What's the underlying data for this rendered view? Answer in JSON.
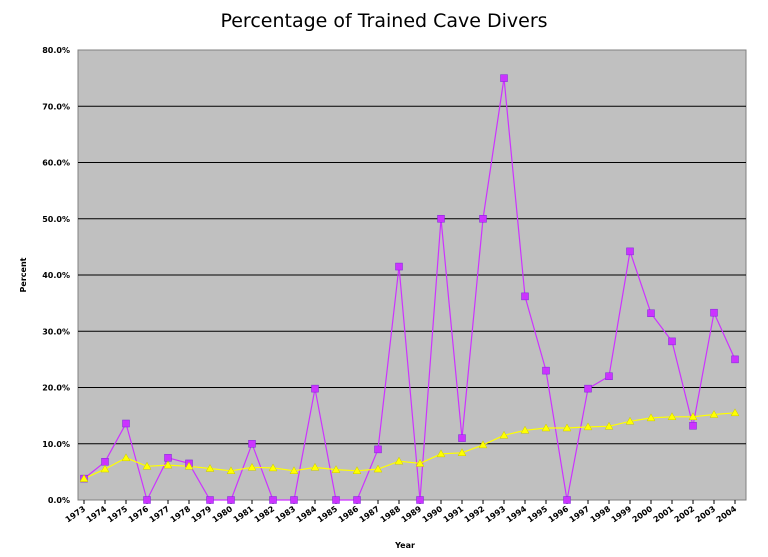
{
  "chart_data": {
    "type": "line",
    "title": "Percentage of Trained Cave Divers",
    "xlabel": "Year",
    "ylabel": "Percent",
    "ylim": [
      0,
      80
    ],
    "yticks": [
      "0.0%",
      "10.0%",
      "20.0%",
      "30.0%",
      "40.0%",
      "50.0%",
      "60.0%",
      "70.0%",
      "80.0%"
    ],
    "categories": [
      "1973",
      "1974",
      "1975",
      "1976",
      "1977",
      "1978",
      "1979",
      "1980",
      "1981",
      "1982",
      "1983",
      "1984",
      "1985",
      "1986",
      "1987",
      "1988",
      "1989",
      "1990",
      "1991",
      "1992",
      "1993",
      "1994",
      "1995",
      "1996",
      "1997",
      "1998",
      "1999",
      "2000",
      "2001",
      "2002",
      "2003",
      "2004"
    ],
    "series": [
      {
        "color": "#cc33ff",
        "marker": "square",
        "values": [
          3.8,
          6.8,
          13.6,
          0.0,
          7.5,
          6.5,
          0.0,
          0.0,
          10.0,
          0.0,
          0.0,
          19.8,
          0.0,
          0.0,
          9.0,
          41.5,
          0.0,
          50.0,
          11.0,
          50.0,
          75.0,
          36.2,
          23.0,
          0.0,
          19.8,
          22.0,
          44.2,
          33.2,
          28.2,
          13.2,
          33.3,
          25.0
        ]
      },
      {
        "color": "#ffff00",
        "marker": "triangle",
        "values": [
          3.8,
          5.5,
          7.5,
          6.0,
          6.2,
          6.0,
          5.6,
          5.2,
          5.8,
          5.7,
          5.2,
          5.8,
          5.4,
          5.2,
          5.5,
          6.9,
          6.5,
          8.2,
          8.4,
          9.8,
          11.5,
          12.4,
          12.8,
          12.8,
          13.0,
          13.1,
          14.0,
          14.6,
          14.8,
          14.8,
          15.2,
          15.5
        ]
      }
    ],
    "grid": true,
    "plot_background": "#c0c0c0"
  }
}
